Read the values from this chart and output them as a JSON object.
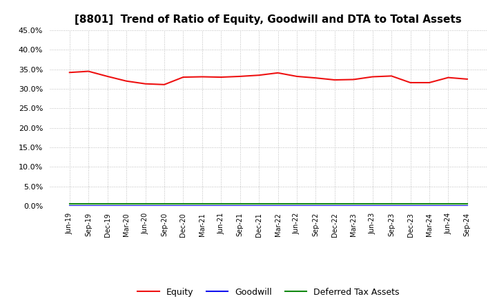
{
  "title": "[8801]  Trend of Ratio of Equity, Goodwill and DTA to Total Assets",
  "x_labels": [
    "Jun-19",
    "Sep-19",
    "Dec-19",
    "Mar-20",
    "Jun-20",
    "Sep-20",
    "Dec-20",
    "Mar-21",
    "Jun-21",
    "Sep-21",
    "Dec-21",
    "Mar-22",
    "Jun-22",
    "Sep-22",
    "Dec-22",
    "Mar-23",
    "Jun-23",
    "Sep-23",
    "Dec-23",
    "Mar-24",
    "Jun-24",
    "Sep-24"
  ],
  "equity": [
    0.342,
    0.345,
    0.332,
    0.32,
    0.313,
    0.311,
    0.33,
    0.331,
    0.33,
    0.332,
    0.335,
    0.341,
    0.332,
    0.328,
    0.323,
    0.324,
    0.331,
    0.333,
    0.316,
    0.316,
    0.329,
    0.325
  ],
  "goodwill": [
    0.001,
    0.001,
    0.001,
    0.001,
    0.001,
    0.001,
    0.001,
    0.001,
    0.001,
    0.001,
    0.001,
    0.001,
    0.001,
    0.001,
    0.001,
    0.001,
    0.001,
    0.001,
    0.001,
    0.001,
    0.001,
    0.001
  ],
  "dta": [
    0.006,
    0.006,
    0.006,
    0.006,
    0.006,
    0.006,
    0.006,
    0.006,
    0.006,
    0.006,
    0.006,
    0.006,
    0.006,
    0.006,
    0.006,
    0.006,
    0.006,
    0.006,
    0.006,
    0.006,
    0.006,
    0.006
  ],
  "equity_color": "#EE1111",
  "goodwill_color": "#1111EE",
  "dta_color": "#118811",
  "ylim": [
    0.0,
    0.45
  ],
  "yticks": [
    0.0,
    0.05,
    0.1,
    0.15,
    0.2,
    0.25,
    0.3,
    0.35,
    0.4,
    0.45
  ],
  "background_color": "#FFFFFF",
  "plot_bg_color": "#FFFFFF",
  "grid_color": "#BBBBBB",
  "title_fontsize": 11,
  "legend_labels": [
    "Equity",
    "Goodwill",
    "Deferred Tax Assets"
  ]
}
